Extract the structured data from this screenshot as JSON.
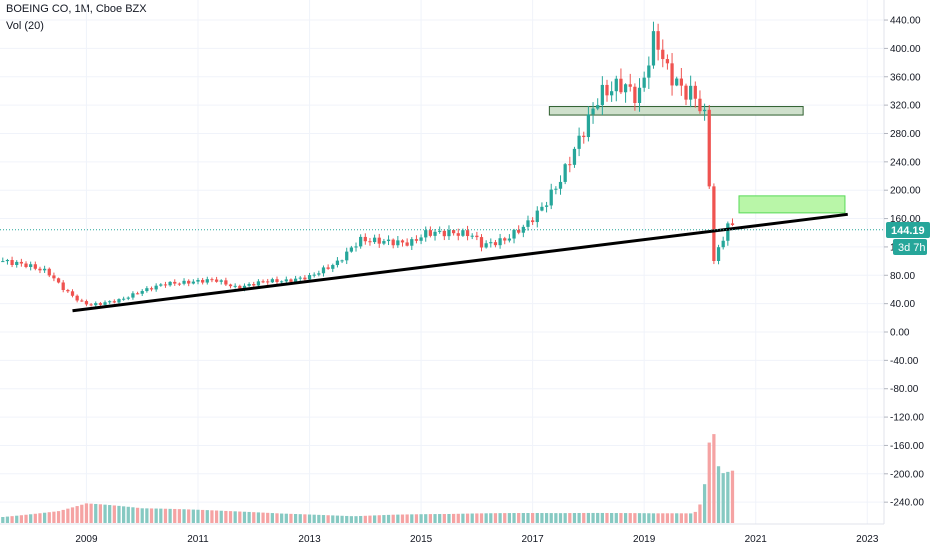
{
  "header": {
    "symbol": "BOEING CO, 1M, Cboe BZX",
    "indicator": "Vol (20)"
  },
  "price_badge": {
    "value": "144.19",
    "countdown": "3d 7h",
    "color": "#26a69a"
  },
  "colors": {
    "up": "#26a69a",
    "down": "#ef5350",
    "vol_up": "#86c9c2",
    "vol_down": "#f5a3a3",
    "zone_dark": "#cfe0cc",
    "zone_light": "#b9f6a8",
    "trendline": "#000000",
    "grid": "#f0f3fa"
  },
  "chart_data": {
    "type": "candlestick",
    "ylim": [
      -260,
      450
    ],
    "y_ticks": [
      "440.00",
      "400.00",
      "360.00",
      "320.00",
      "280.00",
      "240.00",
      "200.00",
      "160.00",
      "120.00",
      "80.00",
      "40.00",
      "0.00",
      "-40.00",
      "-80.00",
      "-120.00",
      "-160.00",
      "-200.00",
      "-240.00"
    ],
    "y_tick_values": [
      440,
      400,
      360,
      320,
      280,
      240,
      200,
      160,
      120,
      80,
      40,
      0,
      -40,
      -80,
      -120,
      -160,
      -200,
      -240
    ],
    "x_ticks": [
      "2009",
      "2011",
      "2013",
      "2015",
      "2017",
      "2019",
      "2021",
      "2023"
    ],
    "x_tick_years": [
      2009,
      2011,
      2013,
      2015,
      2017,
      2019,
      2021,
      2023
    ],
    "x_range_years": [
      2007.45,
      2023.3
    ],
    "last_price": 144.19,
    "price_anchors": [
      [
        2007.5,
        100
      ],
      [
        2007.9,
        95
      ],
      [
        2008.3,
        85
      ],
      [
        2008.6,
        60
      ],
      [
        2008.9,
        42
      ],
      [
        2009.1,
        38
      ],
      [
        2009.6,
        45
      ],
      [
        2010.0,
        58
      ],
      [
        2010.4,
        68
      ],
      [
        2010.8,
        70
      ],
      [
        2011.3,
        74
      ],
      [
        2011.7,
        62
      ],
      [
        2012.2,
        72
      ],
      [
        2012.6,
        72
      ],
      [
        2013.0,
        78
      ],
      [
        2013.5,
        98
      ],
      [
        2013.9,
        130
      ],
      [
        2014.3,
        128
      ],
      [
        2014.8,
        125
      ],
      [
        2015.1,
        140
      ],
      [
        2015.5,
        140
      ],
      [
        2015.9,
        138
      ],
      [
        2016.1,
        122
      ],
      [
        2016.5,
        130
      ],
      [
        2016.9,
        152
      ],
      [
        2017.2,
        178
      ],
      [
        2017.5,
        215
      ],
      [
        2017.9,
        282
      ],
      [
        2018.2,
        335
      ],
      [
        2018.6,
        350
      ],
      [
        2018.9,
        330
      ],
      [
        2019.2,
        420
      ],
      [
        2019.4,
        370
      ],
      [
        2019.7,
        340
      ],
      [
        2019.9,
        335
      ],
      [
        2020.1,
        300
      ],
      [
        2020.25,
        100
      ],
      [
        2020.5,
        150
      ],
      [
        2020.6,
        150
      ]
    ],
    "volume_anchors": [
      [
        2007.5,
        8
      ],
      [
        2008.5,
        12
      ],
      [
        2009.0,
        18
      ],
      [
        2010.0,
        12
      ],
      [
        2011.5,
        10
      ],
      [
        2012.5,
        9
      ],
      [
        2013.5,
        9
      ],
      [
        2014.5,
        9
      ],
      [
        2015.5,
        8
      ],
      [
        2016.5,
        8
      ],
      [
        2017.5,
        8
      ],
      [
        2018.5,
        9
      ],
      [
        2019.2,
        10
      ],
      [
        2019.9,
        12
      ],
      [
        2020.05,
        30
      ],
      [
        2020.15,
        95
      ],
      [
        2020.22,
        135
      ],
      [
        2020.3,
        75
      ],
      [
        2020.4,
        60
      ]
    ],
    "annotations": {
      "trendline": [
        [
          2008.75,
          30
        ],
        [
          2022.65,
          166
        ]
      ],
      "zone_resistance": {
        "x0": 2017.3,
        "x1": 2021.85,
        "y0": 306,
        "y1": 318
      },
      "zone_target": {
        "x0": 2020.7,
        "x1": 2022.6,
        "y0": 168,
        "y1": 192
      }
    }
  }
}
